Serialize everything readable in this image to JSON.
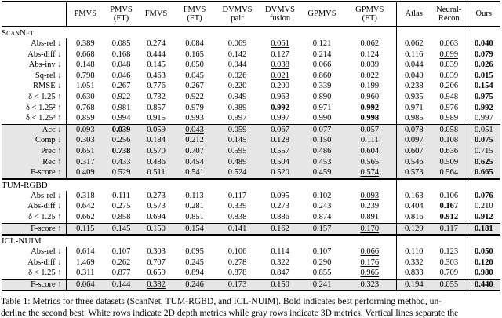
{
  "header": {
    "columns": [
      {
        "id": "pmvs",
        "lines": [
          "PMVS"
        ]
      },
      {
        "id": "pmvs-ft",
        "lines": [
          "PMVS",
          "(FT)"
        ]
      },
      {
        "id": "fmvs",
        "lines": [
          "FMVS"
        ]
      },
      {
        "id": "fmvs-ft",
        "lines": [
          "FMVS",
          "(FT)"
        ]
      },
      {
        "id": "dvmvs-pair",
        "lines": [
          "DVMVS",
          "pair"
        ]
      },
      {
        "id": "dvmvs-fusion",
        "lines": [
          "DVMVS",
          "fusion"
        ]
      },
      {
        "id": "gpmvs",
        "lines": [
          "GPMVS"
        ]
      },
      {
        "id": "gpmvs-ft",
        "lines": [
          "GPMVS",
          "(FT)"
        ]
      },
      {
        "id": "atlas",
        "lines": [
          "Atlas"
        ]
      },
      {
        "id": "neural-recon",
        "lines": [
          "Neural-",
          "Recon"
        ]
      },
      {
        "id": "ours",
        "lines": [
          "Ours"
        ]
      }
    ]
  },
  "legend": {
    "shaded_row_color": "#e6e6e6",
    "rule_color": "#000000"
  },
  "sections": [
    {
      "name": "ScanNet",
      "smallcaps": true,
      "rows": [
        {
          "label": "Abs-rel ↓",
          "shaded": false,
          "values": [
            "0.389",
            "0.085",
            "0.274",
            "0.084",
            "0.069",
            "0.061",
            "0.121",
            "0.062",
            "0.062",
            "0.063",
            "0.040"
          ],
          "fmt": [
            "",
            "",
            "",
            "",
            "",
            "u",
            "",
            "",
            "",
            "",
            "b"
          ]
        },
        {
          "label": "Abs-diff ↓",
          "shaded": false,
          "values": [
            "0.668",
            "0.168",
            "0.444",
            "0.165",
            "0.142",
            "0.127",
            "0.214",
            "0.124",
            "0.116",
            "0.099",
            "0.079"
          ],
          "fmt": [
            "",
            "",
            "",
            "",
            "",
            "",
            "",
            "",
            "",
            "u",
            "b"
          ]
        },
        {
          "label": "Abs-inv ↓",
          "shaded": false,
          "values": [
            "0.148",
            "0.048",
            "0.145",
            "0.050",
            "0.044",
            "0.038",
            "0.066",
            "0.039",
            "0.044",
            "0.039",
            "0.026"
          ],
          "fmt": [
            "",
            "",
            "",
            "",
            "",
            "u",
            "",
            "",
            "",
            "",
            "b"
          ]
        },
        {
          "label": "Sq-rel ↓",
          "shaded": false,
          "values": [
            "0.798",
            "0.046",
            "0.463",
            "0.045",
            "0.026",
            "0.021",
            "0.860",
            "0.022",
            "0.040",
            "0.039",
            "0.015"
          ],
          "fmt": [
            "",
            "",
            "",
            "",
            "",
            "u",
            "",
            "",
            "",
            "",
            "b"
          ]
        },
        {
          "label": "RMSE ↓",
          "shaded": false,
          "values": [
            "1.051",
            "0.267",
            "0.776",
            "0.267",
            "0.220",
            "0.200",
            "0.339",
            "0.199",
            "0.238",
            "0.206",
            "0.154"
          ],
          "fmt": [
            "",
            "",
            "",
            "",
            "",
            "",
            "",
            "u",
            "",
            "",
            "b"
          ]
        },
        {
          "label": "δ < 1.25 ↑",
          "shaded": false,
          "values": [
            "0.630",
            "0.922",
            "0.732",
            "0.922",
            "0.949",
            "0.963",
            "0.890",
            "0.960",
            "0.935",
            "0.948",
            "0.975"
          ],
          "fmt": [
            "",
            "",
            "",
            "",
            "",
            "u",
            "",
            "",
            "",
            "",
            "b"
          ]
        },
        {
          "label": "δ < 1.25² ↑",
          "shaded": false,
          "values": [
            "0.768",
            "0.981",
            "0.857",
            "0.979",
            "0.989",
            "0.992",
            "0.971",
            "0.992",
            "0.971",
            "0.976",
            "0.992"
          ],
          "fmt": [
            "",
            "",
            "",
            "",
            "",
            "b",
            "",
            "b",
            "",
            "",
            "b"
          ]
        },
        {
          "label": "δ < 1.25³ ↑",
          "shaded": false,
          "values": [
            "0.859",
            "0.994",
            "0.915",
            "0.993",
            "0.997",
            "0.997",
            "0.990",
            "0.998",
            "0.985",
            "0.989",
            "0.997"
          ],
          "fmt": [
            "",
            "",
            "",
            "",
            "u",
            "u",
            "",
            "b",
            "",
            "",
            "u"
          ]
        },
        {
          "label": "Acc ↓",
          "shaded": true,
          "values": [
            "0.093",
            "0.039",
            "0.059",
            "0.043",
            "0.059",
            "0.067",
            "0.077",
            "0.057",
            "0.078",
            "0.058",
            "0.051"
          ],
          "fmt": [
            "",
            "b",
            "",
            "u",
            "",
            "",
            "",
            "",
            "",
            "",
            ""
          ]
        },
        {
          "label": "Comp ↓",
          "shaded": true,
          "values": [
            "0.303",
            "0.256",
            "0.184",
            "0.212",
            "0.145",
            "0.128",
            "0.150",
            "0.111",
            "0.097",
            "0.108",
            "0.075"
          ],
          "fmt": [
            "",
            "",
            "",
            "",
            "",
            "",
            "",
            "",
            "u",
            "",
            "b"
          ]
        },
        {
          "label": "Prec ↑",
          "shaded": true,
          "values": [
            "0.651",
            "0.738",
            "0.570",
            "0.707",
            "0.595",
            "0.557",
            "0.486",
            "0.604",
            "0.607",
            "0.636",
            "0.715"
          ],
          "fmt": [
            "",
            "b",
            "",
            "",
            "",
            "",
            "",
            "",
            "",
            "",
            "u"
          ]
        },
        {
          "label": "Rec ↑",
          "shaded": true,
          "values": [
            "0.317",
            "0.433",
            "0.486",
            "0.454",
            "0.489",
            "0.504",
            "0.453",
            "0.565",
            "0.546",
            "0.509",
            "0.625"
          ],
          "fmt": [
            "",
            "",
            "",
            "",
            "",
            "",
            "",
            "u",
            "",
            "",
            "b"
          ]
        },
        {
          "label": "F-score ↑",
          "shaded": true,
          "values": [
            "0.409",
            "0.529",
            "0.511",
            "0.541",
            "0.524",
            "0.520",
            "0.459",
            "0.574",
            "0.573",
            "0.564",
            "0.665"
          ],
          "fmt": [
            "",
            "",
            "",
            "",
            "",
            "",
            "",
            "u",
            "",
            "",
            "b"
          ]
        }
      ]
    },
    {
      "name": "TUM-RGBD",
      "smallcaps": false,
      "rows": [
        {
          "label": "Abs-rel ↓",
          "shaded": false,
          "values": [
            "0.318",
            "0.111",
            "0.273",
            "0.113",
            "0.117",
            "0.095",
            "0.102",
            "0.093",
            "0.163",
            "0.106",
            "0.076"
          ],
          "fmt": [
            "",
            "",
            "",
            "",
            "",
            "",
            "",
            "u",
            "",
            "",
            "b"
          ]
        },
        {
          "label": "Abs-diff ↓",
          "shaded": false,
          "values": [
            "0.642",
            "0.275",
            "0.573",
            "0.281",
            "0.339",
            "0.273",
            "0.243",
            "0.239",
            "0.404",
            "0.167",
            "0.210"
          ],
          "fmt": [
            "",
            "",
            "",
            "",
            "",
            "",
            "",
            "",
            "",
            "b",
            "u"
          ]
        },
        {
          "label": "δ < 1.25 ↑",
          "shaded": false,
          "values": [
            "0.662",
            "0.858",
            "0.694",
            "0.851",
            "0.838",
            "0.886",
            "0.874",
            "0.891",
            "0.816",
            "0.912",
            "0.912"
          ],
          "fmt": [
            "",
            "",
            "",
            "",
            "",
            "",
            "",
            "",
            "",
            "b",
            "b"
          ]
        },
        {
          "label": "F-score ↑",
          "shaded": true,
          "values": [
            "0.115",
            "0.145",
            "0.150",
            "0.154",
            "0.141",
            "0.162",
            "0.157",
            "0.170",
            "0.129",
            "0.117",
            "0.181"
          ],
          "fmt": [
            "",
            "",
            "",
            "",
            "",
            "",
            "",
            "u",
            "",
            "",
            "b"
          ]
        }
      ]
    },
    {
      "name": "ICL-NUIM",
      "smallcaps": false,
      "rows": [
        {
          "label": "Abs-rel ↓",
          "shaded": false,
          "values": [
            "0.614",
            "0.107",
            "0.303",
            "0.095",
            "0.106",
            "0.114",
            "0.107",
            "0.066",
            "0.110",
            "0.123",
            "0.050"
          ],
          "fmt": [
            "",
            "",
            "",
            "",
            "",
            "",
            "",
            "u",
            "",
            "",
            "b"
          ]
        },
        {
          "label": "Abs-diff ↓",
          "shaded": false,
          "values": [
            "1.469",
            "0.262",
            "0.707",
            "0.245",
            "0.278",
            "0.322",
            "0.290",
            "0.176",
            "0.332",
            "0.303",
            "0.120"
          ],
          "fmt": [
            "",
            "",
            "",
            "",
            "",
            "",
            "",
            "u",
            "",
            "",
            "b"
          ]
        },
        {
          "label": "δ < 1.25 ↑",
          "shaded": false,
          "values": [
            "0.311",
            "0.877",
            "0.659",
            "0.894",
            "0.878",
            "0.847",
            "0.855",
            "0.965",
            "0.833",
            "0.709",
            "0.980"
          ],
          "fmt": [
            "",
            "",
            "",
            "",
            "",
            "",
            "",
            "u",
            "",
            "",
            "b"
          ]
        },
        {
          "label": "F-score ↑",
          "shaded": true,
          "values": [
            "0.064",
            "0.144",
            "0.382",
            "0.246",
            "0.173",
            "0.150",
            "0.241",
            "0.323",
            "0.194",
            "0.055",
            "0.440"
          ],
          "fmt": [
            "",
            "",
            "u",
            "",
            "",
            "",
            "",
            "",
            "",
            "",
            "b"
          ]
        }
      ]
    }
  ],
  "caption": {
    "line1": "Table 1: Metrics for three datasets (ScanNet, TUM-RGBD, and ICL-NUIM). Bold indicates best performing method, un-",
    "line2": "derline the second best. White rows indicate 2D depth metrics while gray rows indicate 3D metrics. Vertical lines separate the"
  }
}
